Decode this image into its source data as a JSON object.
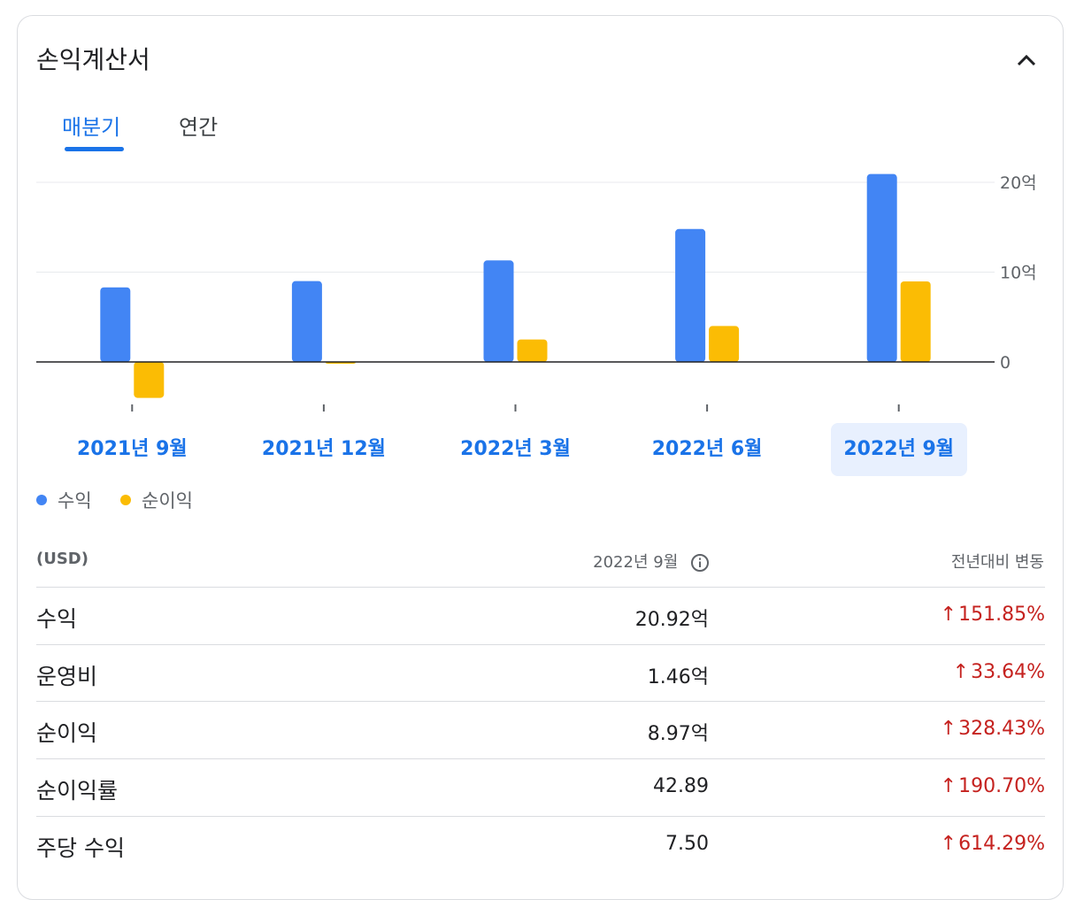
{
  "card": {
    "title": "손익계산서",
    "tabs": [
      {
        "label": "매분기",
        "active": true
      },
      {
        "label": "연간",
        "active": false
      }
    ]
  },
  "chart_data": {
    "type": "bar",
    "categories": [
      "2021년 9월",
      "2021년 12월",
      "2022년 3월",
      "2022년 6월",
      "2022년 9월"
    ],
    "selected_category": "2022년 9월",
    "series": [
      {
        "name": "수익",
        "color": "#4285f4",
        "values": [
          8.3,
          9.0,
          11.3,
          14.8,
          20.92
        ]
      },
      {
        "name": "순이익",
        "color": "#fbbc04",
        "values": [
          -4.0,
          -0.2,
          2.5,
          4.0,
          8.97
        ]
      }
    ],
    "y_ticks": [
      {
        "value": 20,
        "label": "20억"
      },
      {
        "value": 10,
        "label": "10억"
      },
      {
        "value": 0,
        "label": "0"
      }
    ],
    "ylim": [
      -5,
      21
    ],
    "grid": true,
    "legend_position": "bottom-left"
  },
  "table": {
    "headers": {
      "unit": "(USD)",
      "period": "2022년 9월",
      "change": "전년대비 변동"
    },
    "rows": [
      {
        "name": "수익",
        "value": "20.92억",
        "change": "151.85%"
      },
      {
        "name": "운영비",
        "value": "1.46억",
        "change": "33.64%"
      },
      {
        "name": "순이익",
        "value": "8.97억",
        "change": "328.43%"
      },
      {
        "name": "순이익률",
        "value": "42.89",
        "change": "190.70%"
      },
      {
        "name": "주당 수익",
        "value": "7.50",
        "change": "614.29%"
      }
    ],
    "change_color": "#c5221f"
  },
  "icons": {
    "collapse": "chevron-up-icon",
    "info": "info-icon",
    "change": "arrow-up-icon"
  }
}
